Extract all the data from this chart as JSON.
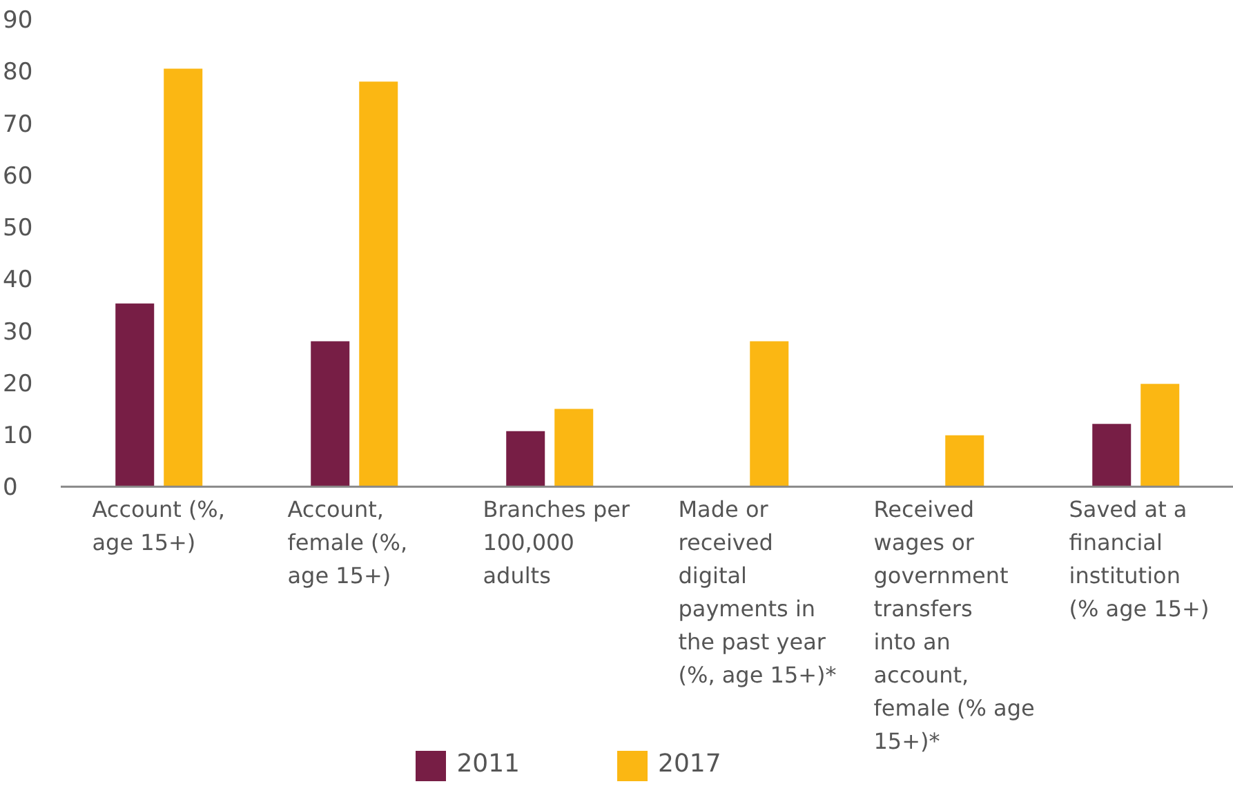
{
  "chart_data": {
    "type": "bar",
    "categories": [
      "Account (%, age 15+)",
      "Account, female (%, age 15+)",
      "Branches per 100,000 adults",
      "Made or received digital payments in the past year (%, age 15+)*",
      "Received wages or government transfers into an account, female (% age 15+)*",
      "Saved at a financial institution (% age 15+)"
    ],
    "series": [
      {
        "name": "2011",
        "color": "#771e45",
        "values": [
          35.3,
          28,
          10.7,
          null,
          null,
          12.1
        ]
      },
      {
        "name": "2017",
        "color": "#fbb713",
        "values": [
          80.5,
          78,
          15,
          28,
          9.9,
          19.8
        ]
      }
    ],
    "ylim": [
      0,
      90
    ],
    "yticks": [
      0,
      10,
      20,
      30,
      40,
      50,
      60,
      70,
      80,
      90
    ],
    "grid": false,
    "legend": "bottom"
  }
}
